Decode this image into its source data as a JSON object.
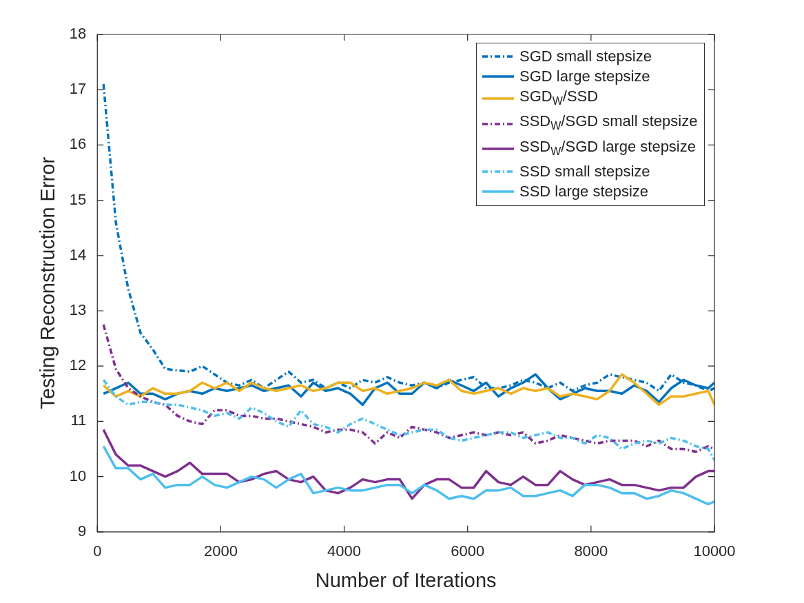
{
  "chart_data": {
    "type": "line",
    "xlabel": "Number of Iterations",
    "ylabel": "Testing Reconstruction Error",
    "x": [
      100,
      300,
      500,
      700,
      900,
      1100,
      1300,
      1500,
      1700,
      1900,
      2100,
      2300,
      2500,
      2700,
      2900,
      3100,
      3300,
      3500,
      3700,
      3900,
      4100,
      4300,
      4500,
      4700,
      4900,
      5100,
      5300,
      5500,
      5700,
      5900,
      6100,
      6300,
      6500,
      6700,
      6900,
      7100,
      7300,
      7500,
      7700,
      7900,
      8100,
      8300,
      8500,
      8700,
      8900,
      9100,
      9300,
      9500,
      9700,
      9900,
      10000
    ],
    "xlim": [
      0,
      10000
    ],
    "xticks": [
      0,
      2000,
      4000,
      6000,
      8000,
      10000
    ],
    "ylim": [
      9,
      18
    ],
    "yticks": [
      9,
      10,
      11,
      12,
      13,
      14,
      15,
      16,
      17,
      18
    ],
    "grid": false,
    "legend": "top right",
    "marker": "none",
    "series": [
      {
        "name": "SGD small stepsize",
        "color": "#0072bd",
        "line_style": "dashed",
        "values": [
          17.1,
          14.6,
          13.4,
          12.6,
          12.3,
          11.95,
          11.92,
          11.9,
          12.0,
          11.85,
          11.7,
          11.65,
          11.75,
          11.6,
          11.75,
          11.9,
          11.7,
          11.75,
          11.6,
          11.7,
          11.6,
          11.75,
          11.7,
          11.8,
          11.7,
          11.65,
          11.7,
          11.6,
          11.7,
          11.75,
          11.8,
          11.6,
          11.6,
          11.65,
          11.75,
          11.7,
          11.6,
          11.7,
          11.55,
          11.65,
          11.7,
          11.85,
          11.8,
          11.75,
          11.7,
          11.55,
          11.85,
          11.7,
          11.65,
          11.55,
          11.6
        ]
      },
      {
        "name": "SGD large stepsize",
        "color": "#0072bd",
        "line_style": "solid",
        "values": [
          11.5,
          11.6,
          11.7,
          11.5,
          11.5,
          11.4,
          11.5,
          11.55,
          11.5,
          11.6,
          11.55,
          11.6,
          11.65,
          11.55,
          11.6,
          11.65,
          11.45,
          11.7,
          11.55,
          11.6,
          11.5,
          11.3,
          11.6,
          11.7,
          11.5,
          11.5,
          11.7,
          11.6,
          11.75,
          11.65,
          11.55,
          11.7,
          11.45,
          11.6,
          11.7,
          11.85,
          11.6,
          11.4,
          11.5,
          11.6,
          11.55,
          11.55,
          11.5,
          11.65,
          11.55,
          11.35,
          11.6,
          11.75,
          11.65,
          11.6,
          11.7
        ]
      },
      {
        "name": "SGD$_{W}$/SSD",
        "color": "#edb120",
        "line_style": "solid",
        "values": [
          11.65,
          11.45,
          11.55,
          11.45,
          11.6,
          11.5,
          11.5,
          11.55,
          11.7,
          11.6,
          11.7,
          11.55,
          11.7,
          11.6,
          11.55,
          11.6,
          11.65,
          11.55,
          11.6,
          11.7,
          11.7,
          11.55,
          11.6,
          11.5,
          11.55,
          11.6,
          11.7,
          11.65,
          11.75,
          11.55,
          11.5,
          11.55,
          11.6,
          11.5,
          11.6,
          11.55,
          11.6,
          11.45,
          11.5,
          11.45,
          11.4,
          11.55,
          11.85,
          11.7,
          11.5,
          11.3,
          11.45,
          11.45,
          11.5,
          11.55,
          11.3
        ]
      },
      {
        "name": "SSD$_{W}$/SGD small stepsize",
        "color": "#7e2f8e",
        "line_style": "dashed",
        "values": [
          12.75,
          11.95,
          11.6,
          11.45,
          11.35,
          11.3,
          11.1,
          11.0,
          10.95,
          11.2,
          11.2,
          11.1,
          11.1,
          11.05,
          11.05,
          11.0,
          10.95,
          10.9,
          10.8,
          10.85,
          10.85,
          10.8,
          10.6,
          10.8,
          10.7,
          10.9,
          10.85,
          10.8,
          10.7,
          10.75,
          10.8,
          10.75,
          10.8,
          10.75,
          10.8,
          10.6,
          10.65,
          10.75,
          10.7,
          10.65,
          10.6,
          10.65,
          10.65,
          10.65,
          10.55,
          10.65,
          10.5,
          10.5,
          10.45,
          10.55,
          10.5
        ]
      },
      {
        "name": "SSD$_{W}$/SGD large stepsize",
        "color": "#7e2f8e",
        "line_style": "solid",
        "values": [
          10.85,
          10.4,
          10.2,
          10.2,
          10.1,
          10.0,
          10.1,
          10.25,
          10.05,
          10.05,
          10.05,
          9.9,
          9.95,
          10.05,
          10.1,
          9.95,
          9.9,
          10.0,
          9.75,
          9.7,
          9.8,
          9.95,
          9.9,
          9.95,
          9.95,
          9.6,
          9.85,
          9.95,
          9.95,
          9.8,
          9.8,
          10.1,
          9.9,
          9.85,
          10.0,
          9.85,
          9.85,
          10.1,
          9.95,
          9.85,
          9.9,
          9.95,
          9.85,
          9.85,
          9.8,
          9.75,
          9.8,
          9.8,
          10.0,
          10.1,
          10.1
        ]
      },
      {
        "name": "SSD small stepsize",
        "color": "#4dbeee",
        "line_style": "dashed",
        "values": [
          11.75,
          11.45,
          11.3,
          11.35,
          11.35,
          11.3,
          11.3,
          11.25,
          11.2,
          11.1,
          11.15,
          11.05,
          11.25,
          11.15,
          11.0,
          10.9,
          11.2,
          10.95,
          10.9,
          10.8,
          10.95,
          11.05,
          10.95,
          10.85,
          10.75,
          10.8,
          10.85,
          10.85,
          10.7,
          10.65,
          10.7,
          10.75,
          10.8,
          10.8,
          10.7,
          10.75,
          10.8,
          10.7,
          10.7,
          10.6,
          10.75,
          10.7,
          10.5,
          10.6,
          10.65,
          10.6,
          10.7,
          10.65,
          10.55,
          10.5,
          10.3
        ]
      },
      {
        "name": "SSD large stepsize",
        "color": "#4dbeee",
        "line_style": "solid",
        "values": [
          10.55,
          10.15,
          10.15,
          9.95,
          10.05,
          9.8,
          9.85,
          9.85,
          10.0,
          9.85,
          9.8,
          9.9,
          10.0,
          9.95,
          9.8,
          9.95,
          10.05,
          9.7,
          9.75,
          9.8,
          9.75,
          9.75,
          9.8,
          9.85,
          9.85,
          9.7,
          9.85,
          9.75,
          9.6,
          9.65,
          9.6,
          9.75,
          9.75,
          9.8,
          9.65,
          9.65,
          9.7,
          9.75,
          9.65,
          9.85,
          9.85,
          9.8,
          9.7,
          9.7,
          9.6,
          9.65,
          9.75,
          9.7,
          9.6,
          9.5,
          9.55
        ]
      }
    ]
  }
}
